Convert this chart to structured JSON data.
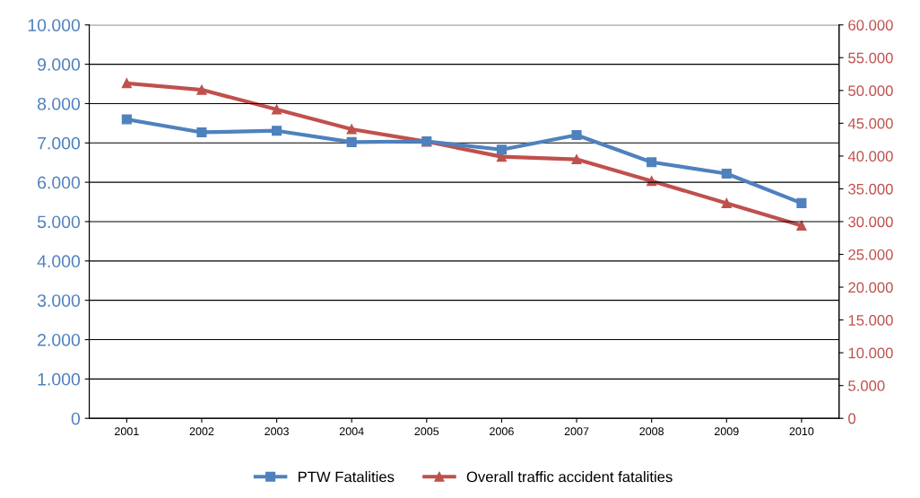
{
  "chart_data": {
    "type": "line",
    "categories": [
      "2001",
      "2002",
      "2003",
      "2004",
      "2005",
      "2006",
      "2007",
      "2008",
      "2009",
      "2010"
    ],
    "series": [
      {
        "name": "PTW Fatalities",
        "color": "#4f81bd",
        "marker": "square",
        "values": [
          7600,
          7270,
          7310,
          7020,
          7040,
          6830,
          7200,
          6510,
          6220,
          5470
        ]
      },
      {
        "name": "Overall traffic accident fatalities",
        "color": "#c0504d",
        "marker": "triangle",
        "axis": "y2",
        "values": [
          51100,
          50100,
          47100,
          44100,
          42200,
          39900,
          39500,
          36200,
          32800,
          29400
        ]
      }
    ],
    "ylim": [
      0,
      10000
    ],
    "yticks": [
      0,
      {
        "value": 1000,
        "label": "1.000"
      },
      {
        "value": 2000,
        "label": "2.000"
      },
      {
        "value": 3000,
        "label": "3.000"
      },
      {
        "value": 4000,
        "label": "4.000"
      },
      {
        "value": 5000,
        "label": "5.000"
      },
      {
        "value": 6000,
        "label": "6.000"
      },
      {
        "value": 7000,
        "label": "7.000"
      },
      {
        "value": 8000,
        "label": "8.000"
      },
      {
        "value": 9000,
        "label": "9.000"
      },
      {
        "value": 10000,
        "label": "10.000"
      }
    ],
    "y2lim": [
      0,
      60000
    ],
    "y2ticks": [
      0,
      {
        "value": 5000,
        "label": "5.000"
      },
      {
        "value": 10000,
        "label": "10.000"
      },
      {
        "value": 15000,
        "label": "15.000"
      },
      {
        "value": 20000,
        "label": "20.000"
      },
      {
        "value": 25000,
        "label": "25.000"
      },
      {
        "value": 30000,
        "label": "30.000"
      },
      {
        "value": 35000,
        "label": "35.000"
      },
      {
        "value": 40000,
        "label": "40.000"
      },
      {
        "value": 45000,
        "label": "45.000"
      },
      {
        "value": 50000,
        "label": "50.000"
      },
      {
        "value": 55000,
        "label": "55.000"
      },
      {
        "value": 60000,
        "label": "60.000"
      }
    ],
    "grid": "y",
    "legend": "bottom",
    "line_style": "solid"
  }
}
